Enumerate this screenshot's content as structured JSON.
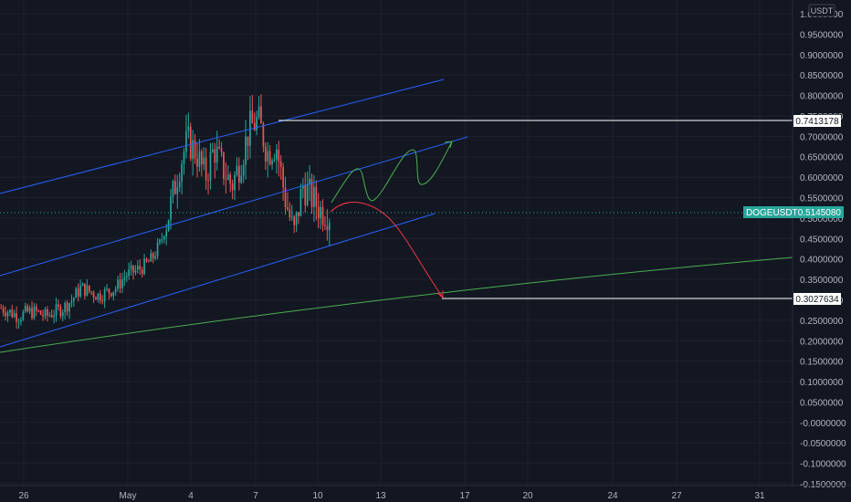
{
  "chart_data": {
    "type": "candlestick",
    "symbol": "DOGEUSDT",
    "currency": "USDT",
    "last_price": "0.5145080",
    "y_range": [
      -0.15,
      1.0
    ],
    "y_ticks": [
      "1.0000000",
      "0.9500000",
      "0.9000000",
      "0.8500000",
      "0.8000000",
      "0.7500000",
      "0.7000000",
      "0.6500000",
      "0.6000000",
      "0.5500000",
      "0.5000000",
      "0.4500000",
      "0.4000000",
      "0.3500000",
      "0.3000000",
      "0.2500000",
      "0.2000000",
      "0.1500000",
      "0.1000000",
      "0.0500000",
      "-0.0000000",
      "-0.0500000",
      "-0.1000000",
      "-0.1500000"
    ],
    "x_ticks": [
      "26",
      "May",
      "4",
      "7",
      "10",
      "13",
      "17",
      "20",
      "24",
      "27",
      "31"
    ],
    "price_levels": [
      {
        "label": "0.7413178",
        "value": 0.7413178,
        "color": "#ffffff"
      },
      {
        "label": "0.3027634",
        "value": 0.3027634,
        "color": "#ffffff"
      }
    ],
    "price_series_approx": [
      0.28,
      0.27,
      0.26,
      0.27,
      0.27,
      0.26,
      0.27,
      0.28,
      0.3,
      0.33,
      0.32,
      0.31,
      0.32,
      0.33,
      0.36,
      0.37,
      0.38,
      0.4,
      0.44,
      0.52,
      0.62,
      0.69,
      0.66,
      0.6,
      0.67,
      0.62,
      0.58,
      0.64,
      0.72,
      0.74,
      0.66,
      0.68,
      0.55,
      0.46,
      0.58,
      0.55,
      0.52,
      0.51
    ],
    "channel_lines": "three parallel blue ascending channel lines",
    "projections": [
      {
        "color": "#22ab94",
        "description": "bullish wave path up to ~0.69"
      },
      {
        "color": "#f23645",
        "description": "bearish path down to 0.3027634"
      }
    ],
    "support_curve": {
      "color": "#4caf50",
      "description": "long-term ascending green support curve"
    }
  },
  "colors": {
    "background": "#131722",
    "grid": "#1e222d",
    "up": "#26a69a",
    "down": "#ef5350",
    "channel": "#2962ff",
    "tag_bg": "#26a69a"
  }
}
